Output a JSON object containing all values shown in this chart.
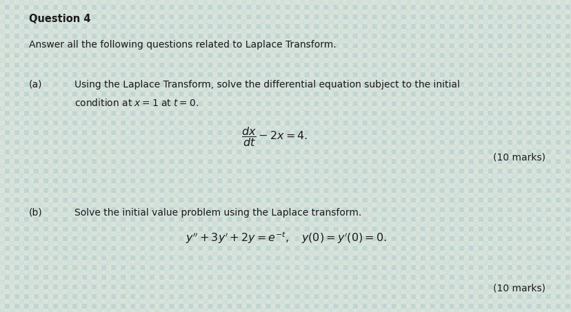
{
  "background_color": "#cdd8d0",
  "fig_width": 8.29,
  "fig_height": 4.53,
  "dpi": 100,
  "title": "Question 4",
  "intro": "Answer all the following questions related to Laplace Transform.",
  "part_a_label": "(a)",
  "part_a_text1": "Using the Laplace Transform, solve the differential equation subject to the initial",
  "part_a_text2": "condition at $x = 1$ at $t = 0$.",
  "part_a_eq": "$\\dfrac{dx}{dt} - 2x = 4.$",
  "part_a_marks": "(10 marks)",
  "part_b_label": "(b)",
  "part_b_text": "Solve the initial value problem using the Laplace transform.",
  "part_b_eq": "$y'' + 3y' + 2y = e^{-t},\\quad y(0) = y'(0) = 0.$",
  "part_b_marks": "(10 marks)",
  "text_color": "#1a1a1a",
  "font_size_title": 10.5,
  "font_size_body": 10.0,
  "font_size_eq": 11.5
}
